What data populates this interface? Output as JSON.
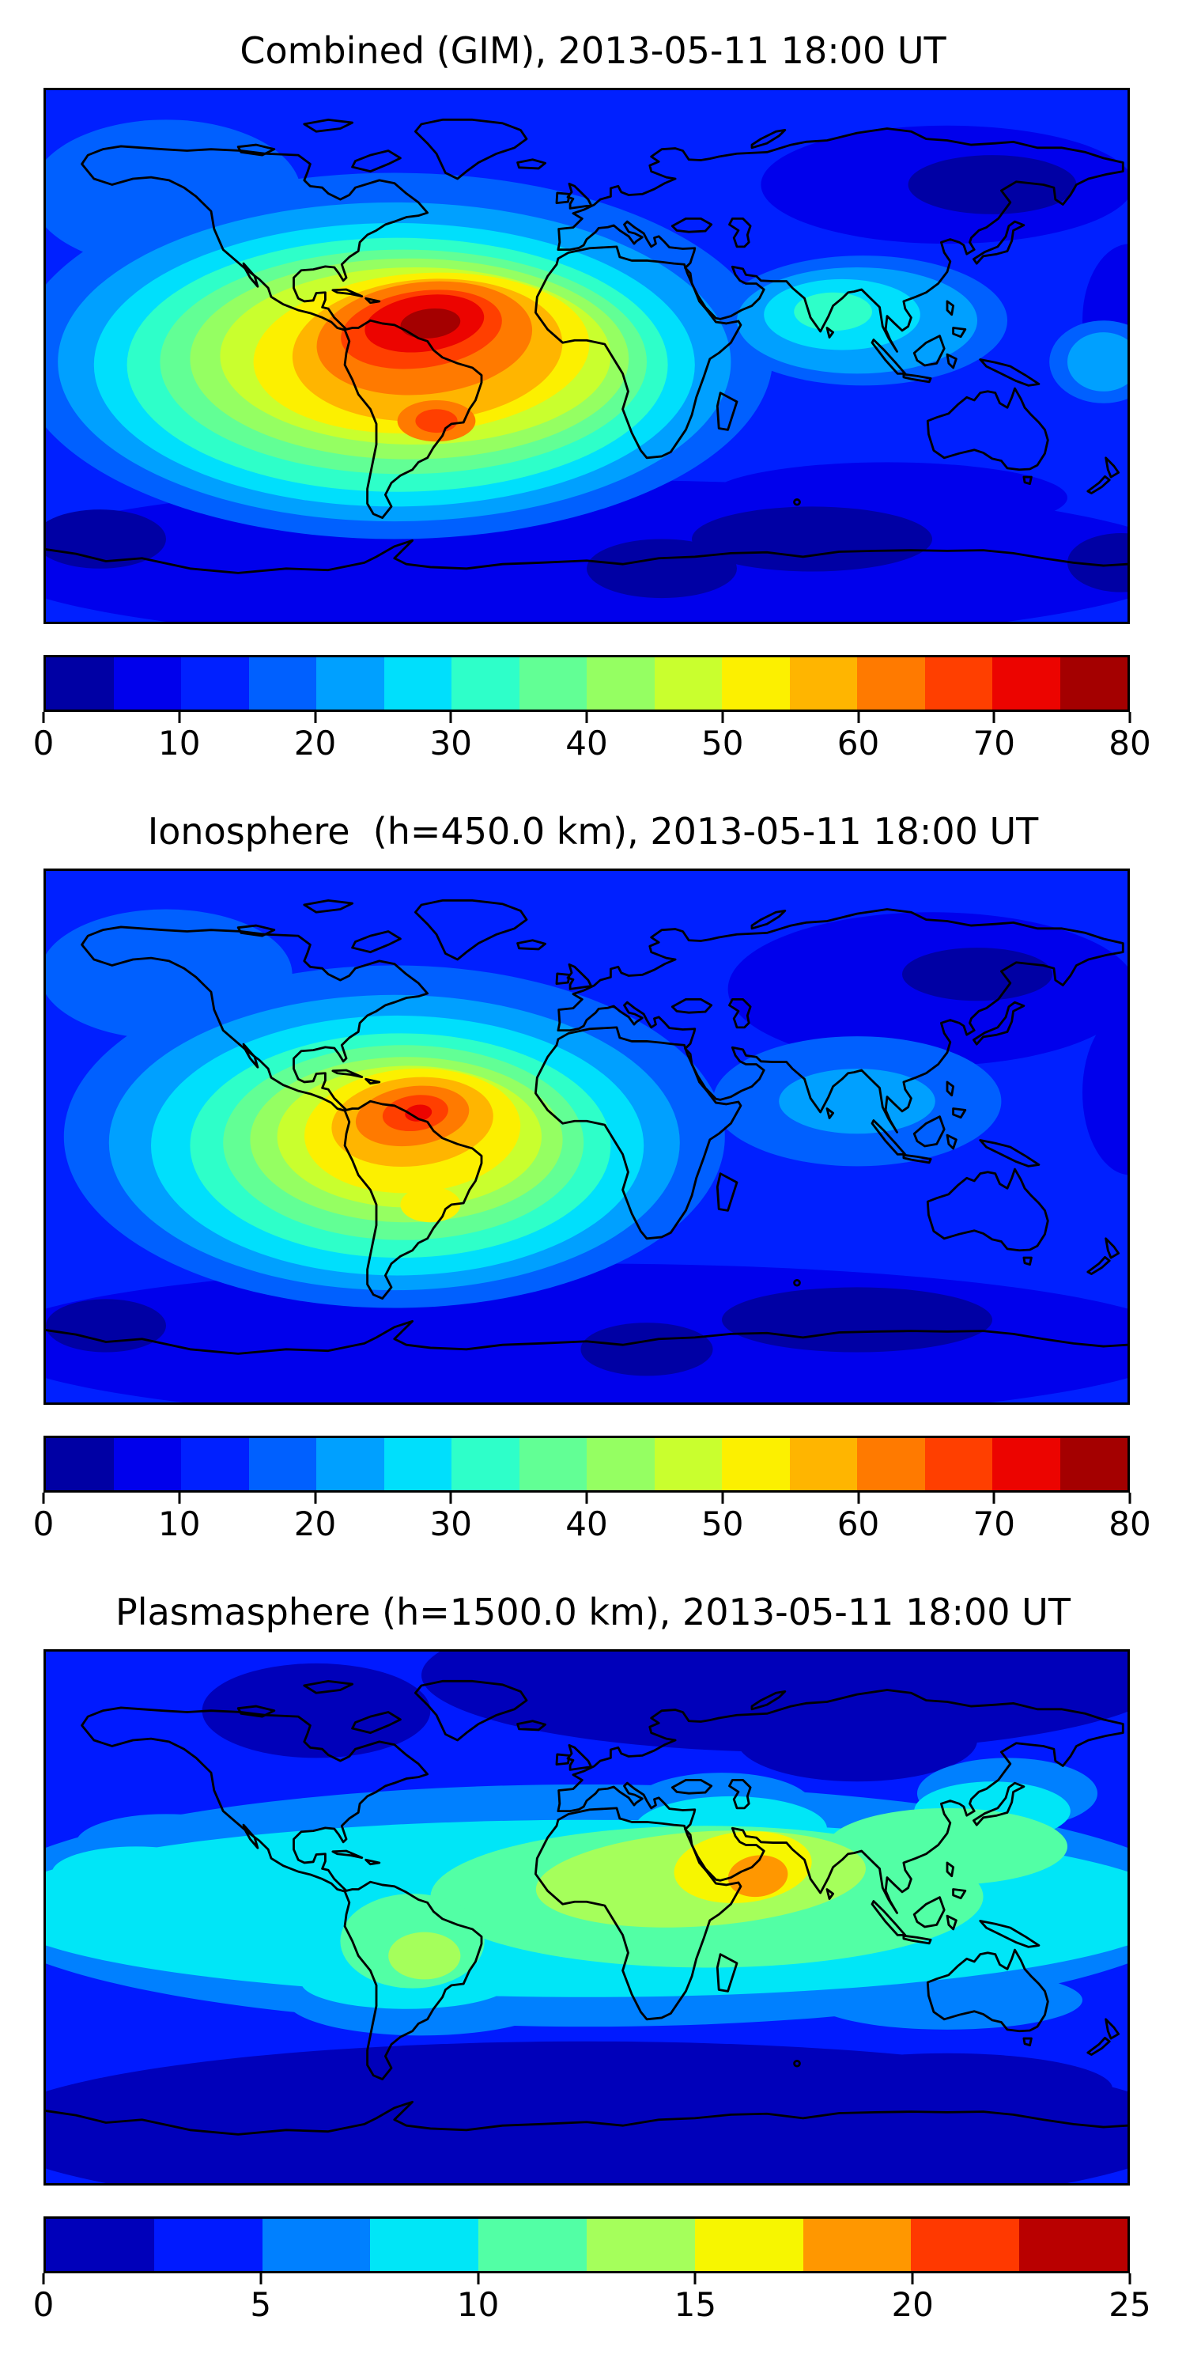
{
  "chart_data": [
    {
      "type": "heatmap",
      "subtype": "filled-contour-world-map",
      "title": "Combined (GIM), 2013-05-11 18:00 UT",
      "datetime_label": "2013-05-11 18:00 UT",
      "layer": "Combined (GIM)",
      "projection": "equirectangular",
      "lon_range": [
        -180,
        180
      ],
      "lat_range": [
        -90,
        90
      ],
      "grid": false,
      "coastlines": true,
      "colormap": "jet, 16 discrete levels",
      "value_range": [
        0,
        80
      ],
      "level_step": 5,
      "levels": [
        0,
        5,
        10,
        15,
        20,
        25,
        30,
        35,
        40,
        45,
        50,
        55,
        60,
        65,
        70,
        75,
        80
      ],
      "colorbar": {
        "orientation": "horizontal",
        "ticks": [
          "0",
          "10",
          "20",
          "30",
          "40",
          "50",
          "60",
          "70",
          "80"
        ],
        "tick_values": [
          0,
          10,
          20,
          30,
          40,
          50,
          60,
          70,
          80
        ],
        "colors": [
          "#0000A4",
          "#0000EC",
          "#0020FF",
          "#0060FF",
          "#00A0FF",
          "#00DFFC",
          "#2EFFC9",
          "#62FF95",
          "#95FF62",
          "#C9FF2E",
          "#FCF000",
          "#FFB500",
          "#FF7A00",
          "#FF3F00",
          "#EC0400",
          "#A40000"
        ]
      },
      "max_value_estimate": 78,
      "max_location_lonlat": [
        -55,
        10
      ],
      "secondary_max": {
        "value_estimate": 67,
        "lonlat": [
          -50,
          -22
        ]
      },
      "min_value_estimate": 3,
      "minima_regions": [
        "northeast Siberia",
        "southern Indian Ocean",
        "high southern latitudes"
      ],
      "pattern_summary": "Strong TEC enhancement centered over northern South America and the western equatorial Atlantic, decreasing in concentric jet-colored bands; low values over Asia, Australia and polar latitudes."
    },
    {
      "type": "heatmap",
      "subtype": "filled-contour-world-map",
      "title": "Ionosphere  (h=450.0 km), 2013-05-11 18:00 UT",
      "datetime_label": "2013-05-11 18:00 UT",
      "layer": "Ionosphere",
      "shell_height_km": 450.0,
      "projection": "equirectangular",
      "lon_range": [
        -180,
        180
      ],
      "lat_range": [
        -90,
        90
      ],
      "grid": false,
      "coastlines": true,
      "colormap": "jet, 16 discrete levels",
      "value_range": [
        0,
        80
      ],
      "level_step": 5,
      "levels": [
        0,
        5,
        10,
        15,
        20,
        25,
        30,
        35,
        40,
        45,
        50,
        55,
        60,
        65,
        70,
        75,
        80
      ],
      "colorbar": {
        "orientation": "horizontal",
        "ticks": [
          "0",
          "10",
          "20",
          "30",
          "40",
          "50",
          "60",
          "70",
          "80"
        ],
        "tick_values": [
          0,
          10,
          20,
          30,
          40,
          50,
          60,
          70,
          80
        ],
        "colors": [
          "#0000A4",
          "#0000EC",
          "#0020FF",
          "#0060FF",
          "#00A0FF",
          "#00DFFC",
          "#2EFFC9",
          "#62FF95",
          "#95FF62",
          "#C9FF2E",
          "#FCF000",
          "#FFB500",
          "#FF7A00",
          "#FF3F00",
          "#EC0400",
          "#A40000"
        ]
      },
      "max_value_estimate": 68,
      "max_location_lonlat": [
        -58,
        8
      ],
      "secondary_max": {
        "value_estimate": 55,
        "lonlat": [
          -52,
          -23
        ]
      },
      "min_value_estimate": 3,
      "minima_regions": [
        "northeast Asia",
        "southern Indian Ocean",
        "high southern latitudes"
      ],
      "pattern_summary": "Same morphology as the combined map but weaker: red-orange core over northern South America, yellow-green halo over South America and the tropical Atlantic, blue over Asia, Australia and polar regions."
    },
    {
      "type": "heatmap",
      "subtype": "filled-contour-world-map",
      "title": "Plasmasphere (h=1500.0 km), 2013-05-11 18:00 UT",
      "datetime_label": "2013-05-11 18:00 UT",
      "layer": "Plasmasphere",
      "shell_height_km": 1500.0,
      "projection": "equirectangular",
      "lon_range": [
        -180,
        180
      ],
      "lat_range": [
        -90,
        90
      ],
      "grid": false,
      "coastlines": true,
      "colormap": "jet, 10 discrete levels",
      "value_range": [
        0,
        25
      ],
      "level_step": 2.5,
      "levels": [
        0,
        2.5,
        5,
        7.5,
        10,
        12.5,
        15,
        17.5,
        20,
        22.5,
        25
      ],
      "colorbar": {
        "orientation": "horizontal",
        "ticks": [
          "0",
          "5",
          "10",
          "15",
          "20",
          "25"
        ],
        "tick_values": [
          0,
          5,
          10,
          15,
          20,
          25
        ],
        "colors": [
          "#0000BA",
          "#001AFF",
          "#0080FF",
          "#00E6F7",
          "#52FFA5",
          "#A5FF5B",
          "#F7F600",
          "#FF9700",
          "#FF3900",
          "#B90000"
        ]
      },
      "max_value_estimate": 21,
      "max_location_lonlat": [
        57,
        14
      ],
      "secondary_max": {
        "value_estimate": 14,
        "lonlat": [
          -54,
          -13
        ]
      },
      "min_value_estimate": 1,
      "minima_regions": [
        "northern high latitudes over Asia",
        "southern high latitudes"
      ],
      "pattern_summary": "Broad cyan-green equatorial belt across all longitudes with a yellow-orange maximum over Arabia / Horn of Africa, a weaker yellow-green patch over Brazil, and dark blue poleward bands."
    }
  ]
}
